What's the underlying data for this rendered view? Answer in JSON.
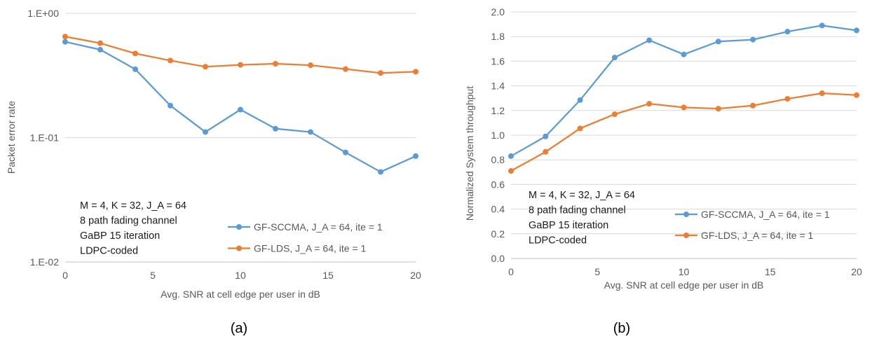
{
  "chart_data": [
    {
      "type": "line",
      "panel_label": "(a)",
      "xlabel": "Avg. SNR at cell edge per user in dB",
      "ylabel": "Packet error rate",
      "yscale": "log",
      "xlim": [
        0,
        20
      ],
      "ylim": [
        0.01,
        1
      ],
      "xticks": [
        0,
        5,
        10,
        15,
        20
      ],
      "yticks": [
        1,
        0.1,
        0.01
      ],
      "ytick_labels": [
        "1.E+00",
        "1.E-01",
        "1.E-02"
      ],
      "grid": "horizontal",
      "legend_position": "bottom-right",
      "annotation": [
        "M = 4, K = 32, J_A = 64",
        "8 path fading channel",
        "GaBP 15 iteration",
        "LDPC-coded"
      ],
      "x": [
        0,
        2,
        4,
        6,
        8,
        10,
        12,
        14,
        16,
        18,
        20
      ],
      "series": [
        {
          "name": "GF-SCCMA, J_A = 64, ite = 1",
          "color": "#5b9bd5",
          "values": [
            0.59,
            0.51,
            0.355,
            0.181,
            0.111,
            0.168,
            0.118,
            0.111,
            0.076,
            0.053,
            0.071
          ]
        },
        {
          "name": "GF-LDS, J_A = 64, ite = 1",
          "color": "#ed7d31",
          "values": [
            0.65,
            0.575,
            0.475,
            0.417,
            0.372,
            0.385,
            0.393,
            0.382,
            0.356,
            0.331,
            0.339
          ]
        }
      ]
    },
    {
      "type": "line",
      "panel_label": "(b)",
      "xlabel": "Avg. SNR at cell edge per user in dB",
      "ylabel": "Normalized System throughput",
      "xlim": [
        0,
        20
      ],
      "ylim": [
        0,
        2
      ],
      "xticks": [
        0,
        5,
        10,
        15,
        20
      ],
      "yticks": [
        0,
        0.2,
        0.4,
        0.6,
        0.8,
        1.0,
        1.2,
        1.4,
        1.6,
        1.8,
        2.0
      ],
      "ytick_labels": [
        "0.0",
        "0.2",
        "0.4",
        "0.6",
        "0.8",
        "1.0",
        "1.2",
        "1.4",
        "1.6",
        "1.8",
        "2.0"
      ],
      "grid": "horizontal",
      "legend_position": "bottom-right",
      "annotation": [
        "M = 4, K = 32, J_A = 64",
        "8 path fading channel",
        "GaBP 15 iteration",
        "LDPC-coded"
      ],
      "x": [
        0,
        2,
        4,
        6,
        8,
        10,
        12,
        14,
        16,
        18,
        20
      ],
      "series": [
        {
          "name": "GF-SCCMA, J_A = 64, ite = 1",
          "color": "#5b9bd5",
          "values": [
            0.83,
            0.99,
            1.285,
            1.63,
            1.77,
            1.655,
            1.76,
            1.775,
            1.84,
            1.89,
            1.85
          ]
        },
        {
          "name": "GF-LDS, J_A = 64, ite = 1",
          "color": "#ed7d31",
          "values": [
            0.71,
            0.865,
            1.055,
            1.17,
            1.255,
            1.225,
            1.215,
            1.24,
            1.295,
            1.34,
            1.325
          ]
        }
      ]
    }
  ]
}
